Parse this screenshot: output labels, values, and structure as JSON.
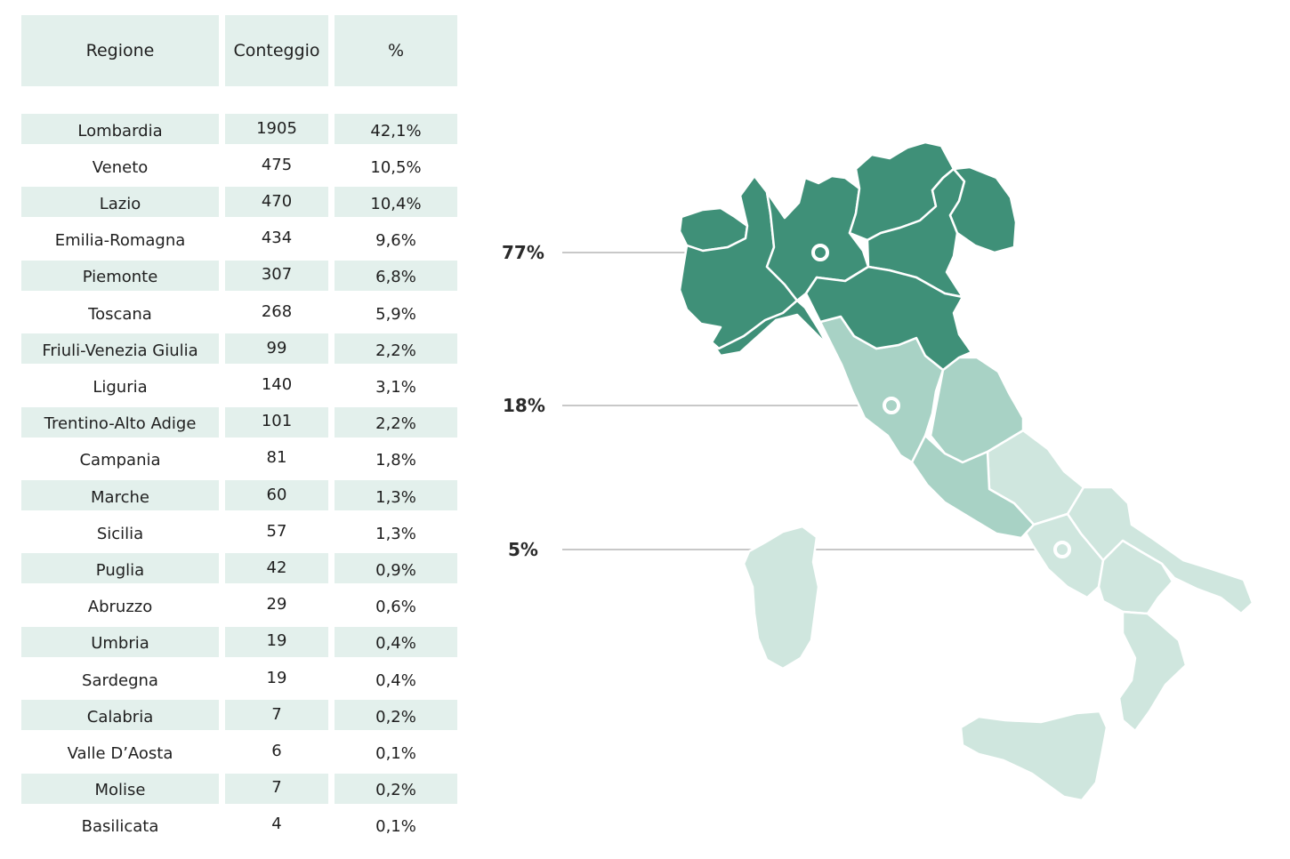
{
  "table": {
    "headers": {
      "region": "Regione",
      "count": "Conteggio",
      "pct": "%"
    },
    "rows": [
      {
        "region": "Lombardia",
        "count": "1905",
        "pct": "42,1%"
      },
      {
        "region": "Veneto",
        "count": "475",
        "pct": "10,5%"
      },
      {
        "region": "Lazio",
        "count": "470",
        "pct": "10,4%"
      },
      {
        "region": "Emilia-Romagna",
        "count": "434",
        "pct": "9,6%"
      },
      {
        "region": "Piemonte",
        "count": "307",
        "pct": "6,8%"
      },
      {
        "region": "Toscana",
        "count": "268",
        "pct": "5,9%"
      },
      {
        "region": "Friuli-Venezia Giulia",
        "count": "99",
        "pct": "2,2%"
      },
      {
        "region": "Liguria",
        "count": "140",
        "pct": "3,1%"
      },
      {
        "region": "Trentino-Alto Adige",
        "count": "101",
        "pct": "2,2%"
      },
      {
        "region": "Campania",
        "count": "81",
        "pct": "1,8%"
      },
      {
        "region": "Marche",
        "count": "60",
        "pct": "1,3%"
      },
      {
        "region": "Sicilia",
        "count": "57",
        "pct": "1,3%"
      },
      {
        "region": "Puglia",
        "count": "42",
        "pct": "0,9%"
      },
      {
        "region": "Abruzzo",
        "count": "29",
        "pct": "0,6%"
      },
      {
        "region": "Umbria",
        "count": "19",
        "pct": "0,4%"
      },
      {
        "region": "Sardegna",
        "count": "19",
        "pct": "0,4%"
      },
      {
        "region": "Calabria",
        "count": "7",
        "pct": "0,2%"
      },
      {
        "region": "Valle D’Aosta",
        "count": "6",
        "pct": "0,1%"
      },
      {
        "region": "Molise",
        "count": "7",
        "pct": "0,2%"
      },
      {
        "region": "Basilicata",
        "count": "4",
        "pct": "0,1%"
      }
    ]
  },
  "map": {
    "zones": [
      {
        "name": "north",
        "label": "77%",
        "color": "#3f9078"
      },
      {
        "name": "center",
        "label": "18%",
        "color": "#a8d2c5"
      },
      {
        "name": "south",
        "label": "5%",
        "color": "#cfe6de"
      }
    ],
    "colors": {
      "row_shade": "#e3f0ec",
      "leader_line": "#c8c8c8",
      "border": "#ffffff"
    }
  }
}
